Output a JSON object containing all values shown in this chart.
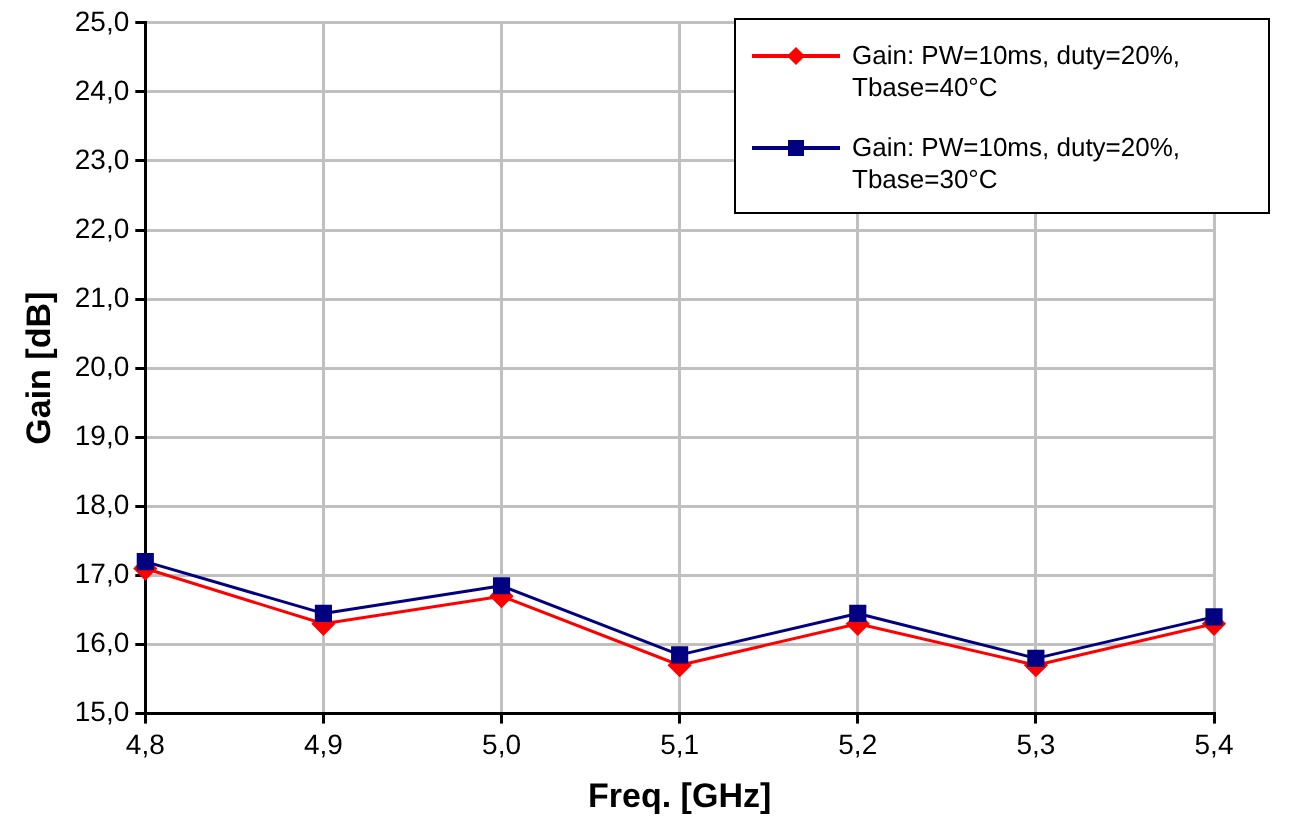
{
  "chart_data": {
    "type": "line",
    "xlabel": "Freq. [GHz]",
    "ylabel": "Gain [dB]",
    "x": [
      4.8,
      4.9,
      5.0,
      5.1,
      5.2,
      5.3,
      5.4
    ],
    "series": [
      {
        "name": "Gain: PW=10ms, duty=20%, Tbase=40°C",
        "color": "#ff0000",
        "marker": "diamond",
        "values": [
          17.1,
          16.3,
          16.7,
          15.7,
          16.3,
          15.7,
          16.3
        ]
      },
      {
        "name": "Gain: PW=10ms, duty=20%, Tbase=30°C",
        "color": "#000080",
        "marker": "square",
        "values": [
          17.2,
          16.45,
          16.85,
          15.85,
          16.45,
          15.8,
          16.4
        ]
      }
    ],
    "xlim": [
      4.8,
      5.4
    ],
    "xticks": [
      {
        "value": 4.8,
        "label": "4,8"
      },
      {
        "value": 4.9,
        "label": "4,9"
      },
      {
        "value": 5.0,
        "label": "5,0"
      },
      {
        "value": 5.1,
        "label": "5,1"
      },
      {
        "value": 5.2,
        "label": "5,2"
      },
      {
        "value": 5.3,
        "label": "5,3"
      },
      {
        "value": 5.4,
        "label": "5,4"
      }
    ],
    "ylim": [
      15,
      25
    ],
    "yticks": [
      {
        "value": 15,
        "label": "15,0"
      },
      {
        "value": 16,
        "label": "16,0"
      },
      {
        "value": 17,
        "label": "17,0"
      },
      {
        "value": 18,
        "label": "18,0"
      },
      {
        "value": 19,
        "label": "19,0"
      },
      {
        "value": 20,
        "label": "20,0"
      },
      {
        "value": 21,
        "label": "21,0"
      },
      {
        "value": 22,
        "label": "22,0"
      },
      {
        "value": 23,
        "label": "23,0"
      },
      {
        "value": 24,
        "label": "24,0"
      },
      {
        "value": 25,
        "label": "25,0"
      }
    ],
    "grid": true,
    "legend": "top right",
    "line_style": "solid"
  }
}
